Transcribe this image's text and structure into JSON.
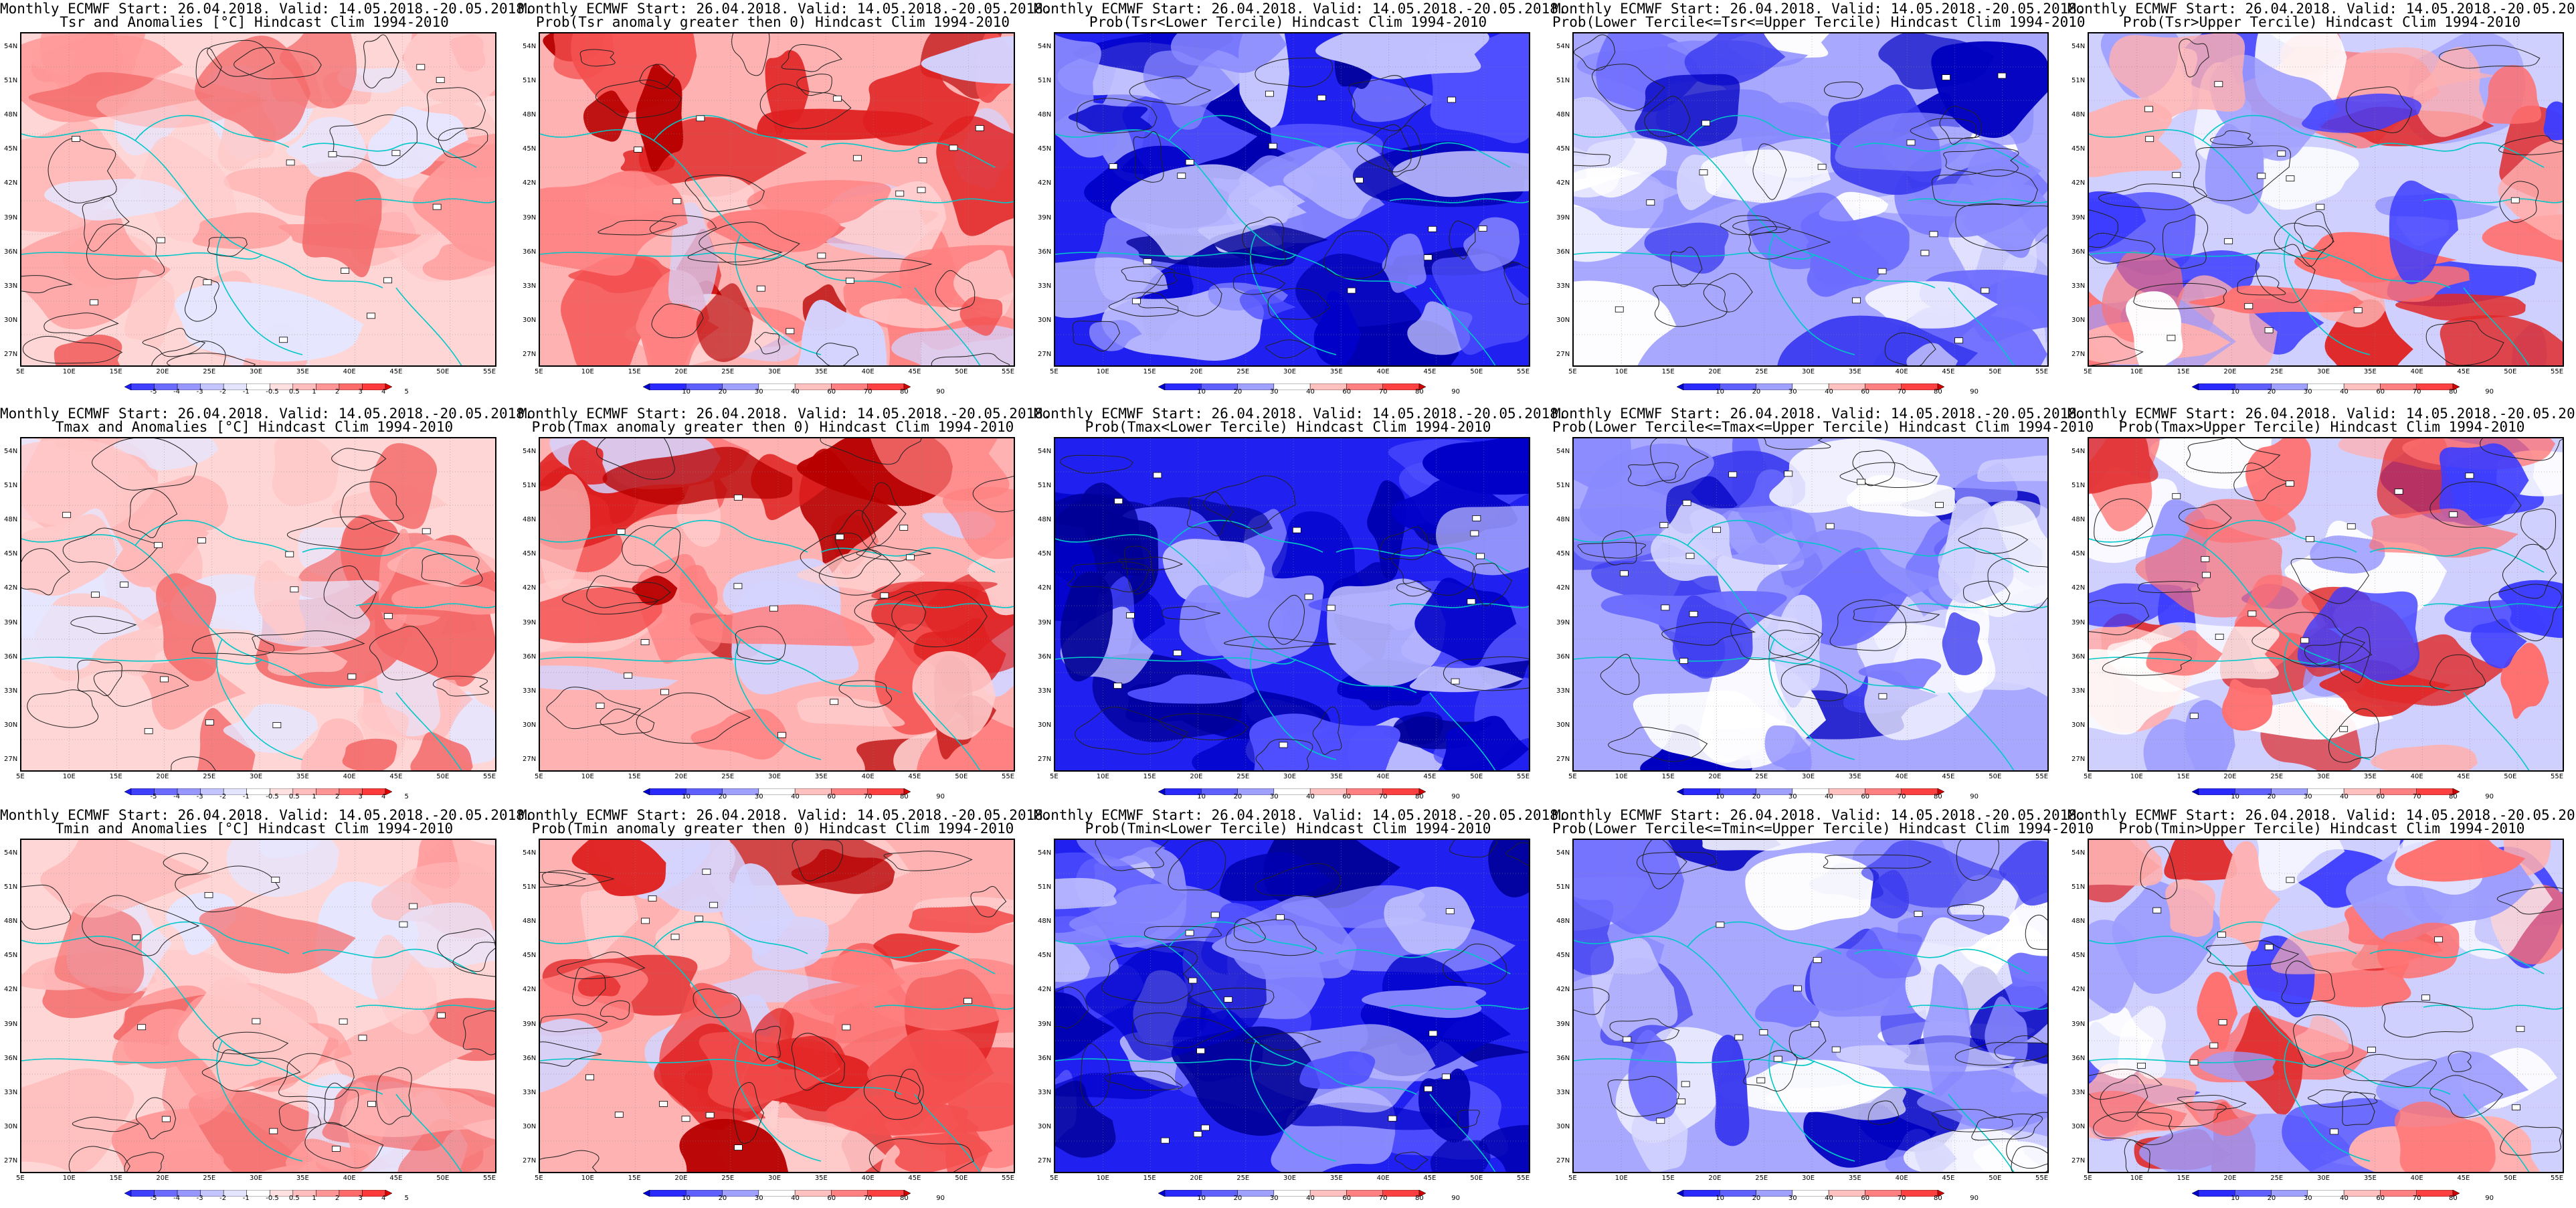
{
  "header_line": "Monthly ECMWF Start: 26.04.2018. Valid: 14.05.2018.-20.05.2018.",
  "panels": [
    {
      "title2": "Tsr and Anomalies [°C] Hindcast Clim 1994-2010",
      "kind": "anom",
      "scale": "anom"
    },
    {
      "title2": "Prob(Tsr anomaly greater then 0) Hindcast Clim 1994-2010",
      "kind": "warm",
      "scale": "prob"
    },
    {
      "title2": "Prob(Tsr<Lower Tercile) Hindcast Clim 1994-2010",
      "kind": "cold",
      "scale": "prob"
    },
    {
      "title2": "Prob(Lower Tercile<=Tsr<=Upper Tercile) Hindcast Clim 1994-2010",
      "kind": "mid",
      "scale": "prob"
    },
    {
      "title2": "Prob(Tsr>Upper Tercile) Hindcast Clim 1994-2010",
      "kind": "upper",
      "scale": "prob"
    },
    {
      "title2": "Tmax and Anomalies [°C] Hindcast Clim 1994-2010",
      "kind": "anom",
      "scale": "anom"
    },
    {
      "title2": "Prob(Tmax anomaly greater then 0) Hindcast Clim 1994-2010",
      "kind": "warm",
      "scale": "prob"
    },
    {
      "title2": "Prob(Tmax<Lower Tercile) Hindcast Clim 1994-2010",
      "kind": "cold",
      "scale": "prob"
    },
    {
      "title2": "Prob(Lower Tercile<=Tmax<=Upper Tercile) Hindcast Clim 1994-2010",
      "kind": "mid",
      "scale": "prob"
    },
    {
      "title2": "Prob(Tmax>Upper Tercile) Hindcast Clim 1994-2010",
      "kind": "upper",
      "scale": "prob"
    },
    {
      "title2": "Tmin and Anomalies [°C] Hindcast Clim 1994-2010",
      "kind": "anom",
      "scale": "anom"
    },
    {
      "title2": "Prob(Tmin anomaly greater then 0) Hindcast Clim 1994-2010",
      "kind": "warm",
      "scale": "prob"
    },
    {
      "title2": "Prob(Tmin<Lower Tercile) Hindcast Clim 1994-2010",
      "kind": "cold",
      "scale": "prob"
    },
    {
      "title2": "Prob(Lower Tercile<=Tmin<=Upper Tercile) Hindcast Clim 1994-2010",
      "kind": "mid",
      "scale": "prob"
    },
    {
      "title2": "Prob(Tmin>Upper Tercile) Hindcast Clim 1994-2010",
      "kind": "upper",
      "scale": "prob"
    }
  ],
  "lat_labels": [
    "54N",
    "51N",
    "48N",
    "45N",
    "42N",
    "39N",
    "36N",
    "33N",
    "30N",
    "27N"
  ],
  "lon_labels": [
    "5E",
    "10E",
    "15E",
    "20E",
    "25E",
    "30E",
    "35E",
    "40E",
    "45E",
    "50E",
    "55E"
  ],
  "scales": {
    "anom": {
      "labels": [
        "-5",
        "-4",
        "-3",
        "-2",
        "-1",
        "-0.5",
        "0.5",
        "1",
        "2",
        "3",
        "4",
        "5"
      ],
      "colors": [
        "#1a1aff",
        "#3f3fff",
        "#6b6bff",
        "#9797ff",
        "#c4c4ff",
        "#e4e4ff",
        "#ffffff",
        "#ffe0e0",
        "#ffbdbd",
        "#ff9595",
        "#ff6a6a",
        "#ff3a3a",
        "#e00000"
      ]
    },
    "prob": {
      "labels": [
        "10",
        "20",
        "30",
        "40",
        "60",
        "70",
        "80",
        "90"
      ],
      "colors": [
        "#0000d0",
        "#2a2aff",
        "#6060ff",
        "#a0a0ff",
        "#ffffff",
        "#ffc0c0",
        "#ff8080",
        "#ff4040",
        "#d00000"
      ]
    }
  }
}
